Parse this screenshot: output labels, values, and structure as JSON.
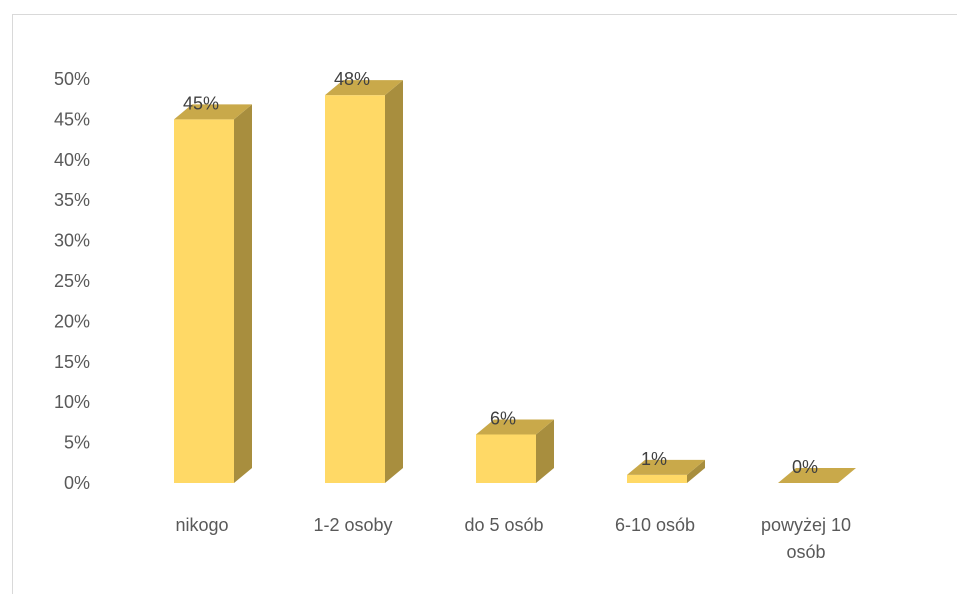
{
  "chart_data": {
    "type": "bar",
    "categories": [
      "nikogo",
      "1-2 osoby",
      "do 5 osób",
      "6-10 osób",
      "powyżej 10 osób"
    ],
    "category_label_lines": [
      [
        "nikogo"
      ],
      [
        "1-2 osoby"
      ],
      [
        "do 5 osób"
      ],
      [
        "6-10 osób"
      ],
      [
        "powyżej 10",
        "osób"
      ]
    ],
    "values": [
      45,
      48,
      6,
      1,
      0
    ],
    "data_labels": [
      "45%",
      "48%",
      "6%",
      "1%",
      "0%"
    ],
    "ylim": [
      0,
      50
    ],
    "yticks": [
      "0%",
      "5%",
      "10%",
      "15%",
      "20%",
      "25%",
      "30%",
      "35%",
      "40%",
      "45%",
      "50%"
    ],
    "grid": false,
    "legend": "none",
    "style": "3d-column",
    "colors": {
      "front": "#FFD966",
      "side": "#A88E3E",
      "top": "#C9A94A",
      "axis_text": "#595959",
      "frame": "#D9D9D9"
    }
  }
}
